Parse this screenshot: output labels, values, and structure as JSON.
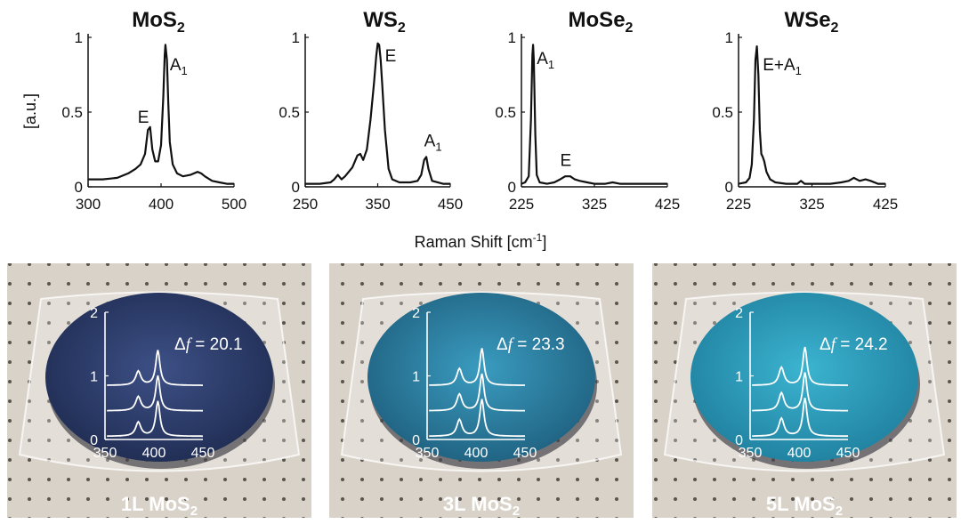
{
  "xlabel_main": "Raman Shift [cm",
  "xlabel_sup": "-1",
  "xlabel_end": "]",
  "ylabel": "[a.u.]",
  "colors": {
    "line": "#111111",
    "inset_line": "#ffffff",
    "table": "#d9d2c8",
    "wafer_1L": "#2c3d6a",
    "wafer_3L": "#2a7ea0",
    "wafer_5L": "#2a9fbd"
  },
  "chart_data": [
    {
      "type": "line",
      "id": "mos2",
      "title_main": "MoS",
      "title_sub": "2",
      "xlim": [
        300,
        500
      ],
      "ylim": [
        0,
        1
      ],
      "xticks": [
        "300",
        "400",
        "500"
      ],
      "xtick_values": [
        300,
        400,
        500
      ],
      "yticks": [
        "0",
        "0.5",
        "1"
      ],
      "ytick_values": [
        0,
        0.5,
        1
      ],
      "x": [
        300,
        320,
        340,
        355,
        365,
        372,
        378,
        382,
        385,
        388,
        392,
        396,
        400,
        403,
        405,
        406,
        408,
        410,
        412,
        416,
        422,
        430,
        440,
        450,
        455,
        460,
        470,
        480,
        490,
        500
      ],
      "y": [
        0.05,
        0.05,
        0.06,
        0.09,
        0.12,
        0.15,
        0.22,
        0.38,
        0.4,
        0.25,
        0.17,
        0.17,
        0.28,
        0.6,
        0.88,
        0.95,
        0.85,
        0.55,
        0.3,
        0.15,
        0.09,
        0.07,
        0.08,
        0.1,
        0.09,
        0.07,
        0.04,
        0.03,
        0.02,
        0.02
      ],
      "annotations": [
        {
          "text": "E",
          "sub": "",
          "x": 368,
          "y": 0.43
        },
        {
          "text": "A",
          "sub": "1",
          "x": 412,
          "y": 0.78
        }
      ]
    },
    {
      "type": "line",
      "id": "ws2",
      "title_main": "WS",
      "title_sub": "2",
      "xlim": [
        250,
        450
      ],
      "ylim": [
        0,
        1
      ],
      "xticks": [
        "250",
        "350",
        "450"
      ],
      "xtick_values": [
        250,
        350,
        450
      ],
      "yticks": [
        "0",
        "0.5",
        "1"
      ],
      "ytick_values": [
        0,
        0.5,
        1
      ],
      "x": [
        250,
        270,
        285,
        290,
        295,
        300,
        305,
        315,
        322,
        326,
        330,
        335,
        340,
        345,
        348,
        350,
        352,
        354,
        356,
        360,
        365,
        370,
        380,
        395,
        405,
        410,
        414,
        417,
        420,
        425,
        440,
        450
      ],
      "y": [
        0.02,
        0.02,
        0.03,
        0.05,
        0.08,
        0.05,
        0.07,
        0.13,
        0.21,
        0.22,
        0.18,
        0.25,
        0.45,
        0.7,
        0.88,
        0.96,
        0.95,
        0.85,
        0.7,
        0.38,
        0.12,
        0.05,
        0.03,
        0.03,
        0.04,
        0.08,
        0.18,
        0.2,
        0.12,
        0.04,
        0.02,
        0.02
      ],
      "annotations": [
        {
          "text": "E",
          "sub": "",
          "x": 360,
          "y": 0.84
        },
        {
          "text": "A",
          "sub": "1",
          "x": 414,
          "y": 0.27
        }
      ]
    },
    {
      "type": "line",
      "id": "mose2",
      "title_main": "MoSe",
      "title_sub": "2",
      "xlim": [
        225,
        425
      ],
      "ylim": [
        0,
        1
      ],
      "xticks": [
        "225",
        "325",
        "425"
      ],
      "xtick_values": [
        225,
        325,
        425
      ],
      "yticks": [
        "0",
        "0.5",
        "1"
      ],
      "ytick_values": [
        0,
        0.5,
        1
      ],
      "x": [
        225,
        230,
        235,
        238,
        240,
        241,
        242,
        244,
        246,
        250,
        260,
        270,
        278,
        285,
        292,
        298,
        305,
        315,
        325,
        340,
        350,
        360,
        375,
        390,
        405,
        425
      ],
      "y": [
        0.02,
        0.03,
        0.07,
        0.45,
        0.88,
        0.95,
        0.85,
        0.35,
        0.08,
        0.03,
        0.02,
        0.03,
        0.05,
        0.07,
        0.07,
        0.05,
        0.04,
        0.03,
        0.02,
        0.02,
        0.03,
        0.02,
        0.02,
        0.02,
        0.02,
        0.02
      ],
      "annotations": [
        {
          "text": "A",
          "sub": "1",
          "x": 246,
          "y": 0.82
        },
        {
          "text": "E",
          "sub": "",
          "x": 278,
          "y": 0.14
        }
      ]
    },
    {
      "type": "line",
      "id": "wse2",
      "title_main": "WSe",
      "title_sub": "2",
      "xlim": [
        225,
        425
      ],
      "ylim": [
        0,
        1
      ],
      "xticks": [
        "225",
        "325",
        "425"
      ],
      "xtick_values": [
        225,
        325,
        425
      ],
      "yticks": [
        "0",
        "0.5",
        "1"
      ],
      "ytick_values": [
        0,
        0.5,
        1
      ],
      "x": [
        225,
        235,
        240,
        243,
        246,
        248,
        250,
        252,
        254,
        256,
        258,
        260,
        263,
        268,
        275,
        290,
        305,
        310,
        315,
        330,
        350,
        365,
        375,
        382,
        390,
        398,
        405,
        415,
        425
      ],
      "y": [
        0.02,
        0.03,
        0.06,
        0.15,
        0.45,
        0.85,
        0.94,
        0.75,
        0.38,
        0.22,
        0.2,
        0.17,
        0.1,
        0.05,
        0.03,
        0.02,
        0.02,
        0.04,
        0.02,
        0.02,
        0.02,
        0.03,
        0.04,
        0.06,
        0.04,
        0.05,
        0.04,
        0.02,
        0.02
      ],
      "annotations": [
        {
          "text": "E+A",
          "sub": "1",
          "x": 258,
          "y": 0.78
        }
      ]
    }
  ],
  "insets": [
    {
      "type": "line",
      "id": "1L",
      "label_main": "1L MoS",
      "label_sub": "2",
      "delta_prefix": "Δ",
      "delta_symbol": "f",
      "delta_text": " = 20.1",
      "delta_value": 20.1,
      "xlim": [
        350,
        450
      ],
      "ylim": [
        0,
        2
      ],
      "xticks": [
        "350",
        "400",
        "450"
      ],
      "xtick_values": [
        350,
        400,
        450
      ],
      "yticks": [
        "0",
        "1",
        "2"
      ],
      "ytick_values": [
        0,
        1,
        2
      ],
      "e_peak": 384,
      "a_peak": 404,
      "e_height": 0.22,
      "a_height": 0.55,
      "offsets": [
        0.05,
        0.45,
        0.85
      ]
    },
    {
      "type": "line",
      "id": "3L",
      "label_main": "3L MoS",
      "label_sub": "2",
      "delta_prefix": "Δ",
      "delta_symbol": "f",
      "delta_text": " = 23.3",
      "delta_value": 23.3,
      "xlim": [
        350,
        450
      ],
      "ylim": [
        0,
        2
      ],
      "xticks": [
        "350",
        "400",
        "450"
      ],
      "xtick_values": [
        350,
        400,
        450
      ],
      "yticks": [
        "0",
        "1",
        "2"
      ],
      "ytick_values": [
        0,
        1,
        2
      ],
      "e_peak": 383,
      "a_peak": 406,
      "e_height": 0.26,
      "a_height": 0.58,
      "offsets": [
        0.05,
        0.45,
        0.85
      ]
    },
    {
      "type": "line",
      "id": "5L",
      "label_main": "5L MoS",
      "label_sub": "2",
      "delta_prefix": "Δ",
      "delta_symbol": "f",
      "delta_text": " = 24.2",
      "delta_value": 24.2,
      "xlim": [
        350,
        450
      ],
      "ylim": [
        0,
        2
      ],
      "xticks": [
        "350",
        "400",
        "450"
      ],
      "xtick_values": [
        350,
        400,
        450
      ],
      "yticks": [
        "0",
        "1",
        "2"
      ],
      "ytick_values": [
        0,
        1,
        2
      ],
      "e_peak": 382,
      "a_peak": 406,
      "e_height": 0.28,
      "a_height": 0.6,
      "offsets": [
        0.05,
        0.45,
        0.85
      ]
    }
  ]
}
